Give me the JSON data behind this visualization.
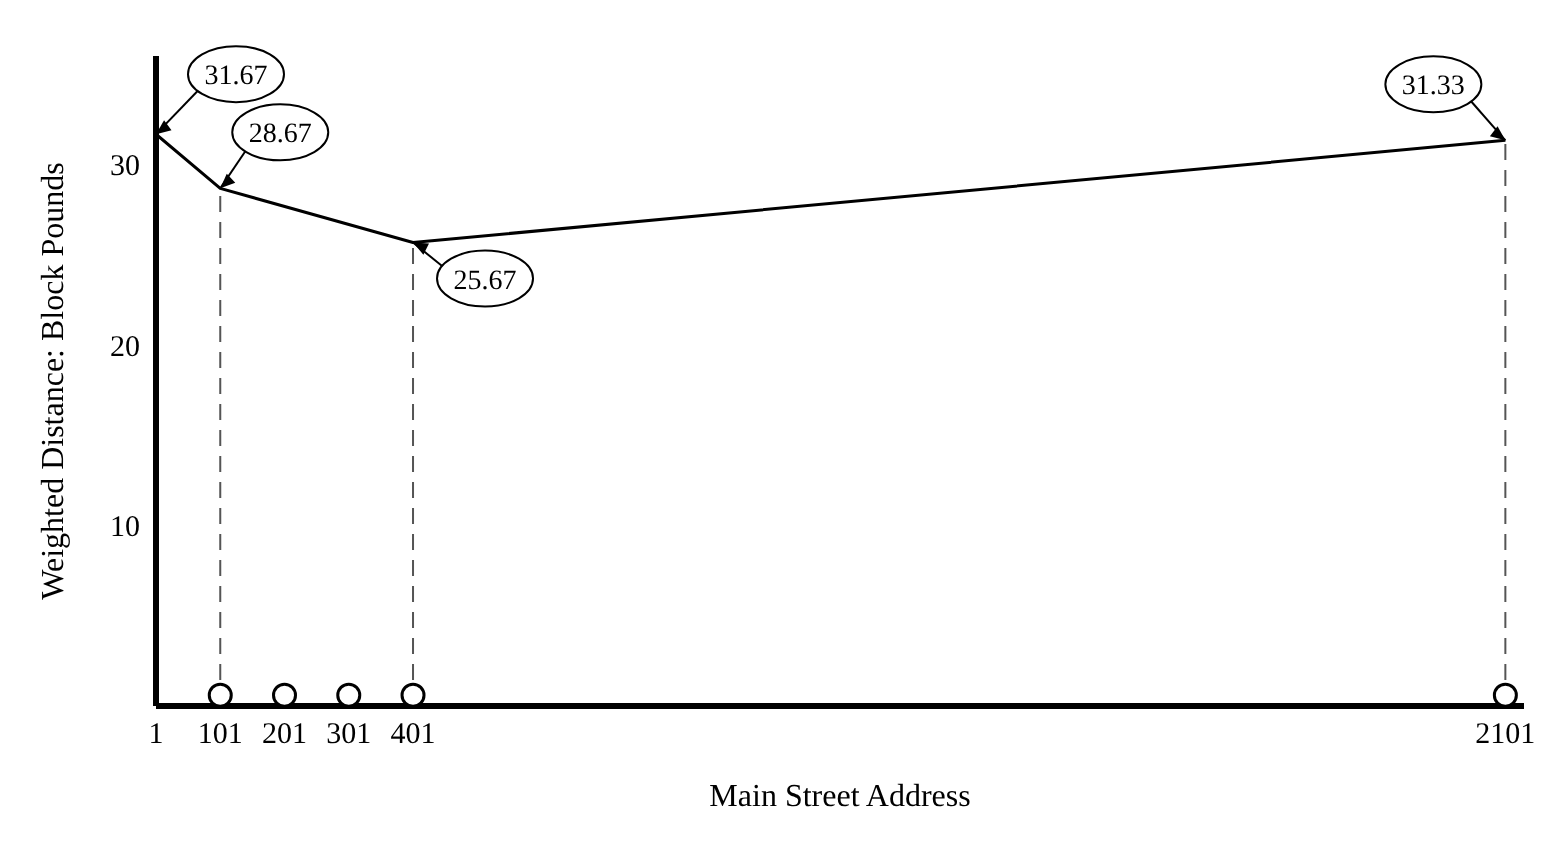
{
  "chart_data": {
    "type": "line",
    "xlabel": "Main Street Address",
    "ylabel": "Weighted Distance: Block Pounds",
    "x": [
      1,
      101,
      401,
      2101
    ],
    "xlim": [
      1,
      2130
    ],
    "xticks": [
      1,
      101,
      201,
      301,
      401,
      2101
    ],
    "ylim": [
      0,
      36
    ],
    "yticks": [
      10,
      20,
      30
    ],
    "grid": false,
    "legend": false,
    "series": [
      {
        "color": "#000000",
        "marker": "none",
        "line_style": "solid",
        "values": [
          31.67,
          28.67,
          25.67,
          31.33
        ],
        "value_labels": [
          "31.67",
          "28.67",
          "25.67",
          "31.33"
        ]
      },
      {
        "type": "scatter",
        "color": "#000000",
        "marker": "circle",
        "x": [
          101,
          201,
          301,
          401,
          2101
        ],
        "values": [
          0.6,
          0.6,
          0.6,
          0.6,
          0.6
        ]
      }
    ],
    "ref_lines": [
      {
        "axis": "x",
        "value": 101,
        "color": "#555555",
        "line_style": "dashed"
      },
      {
        "axis": "x",
        "value": 401,
        "color": "#555555",
        "line_style": "dashed"
      },
      {
        "axis": "x",
        "value": 2101,
        "color": "#555555",
        "line_style": "dashed"
      }
    ]
  }
}
